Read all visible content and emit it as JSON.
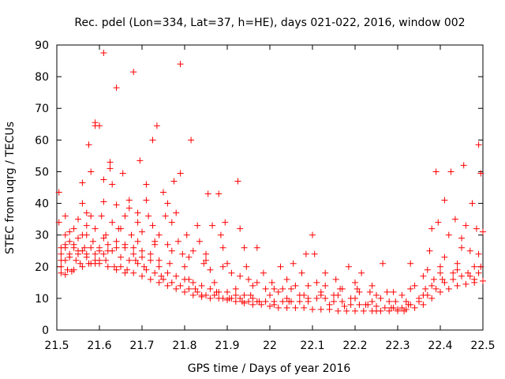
{
  "chart_data": {
    "type": "scatter",
    "title": "Rec. pdel (Lon=334, Lat=37, h=HE), days 021-022, 2016, window 002",
    "xlabel": "GPS time / Days of year 2016",
    "ylabel": "STEC from uqrg / TECUs",
    "xlim": [
      21.5,
      22.5
    ],
    "ylim": [
      0,
      90
    ],
    "xticks": [
      "21.5",
      "21.6",
      "21.7",
      "21.8",
      "21.9",
      "22",
      "22.1",
      "22.2",
      "22.3",
      "22.4",
      "22.5"
    ],
    "yticks": [
      "0",
      "10",
      "20",
      "30",
      "40",
      "50",
      "60",
      "70",
      "80",
      "90"
    ],
    "marker": "plus",
    "color": "#ff0000",
    "grid": false,
    "points": [
      [
        21.505,
        43.5
      ],
      [
        21.505,
        34
      ],
      [
        21.51,
        26
      ],
      [
        21.51,
        24
      ],
      [
        21.51,
        20
      ],
      [
        21.51,
        18
      ],
      [
        21.52,
        36
      ],
      [
        21.52,
        30
      ],
      [
        21.52,
        26
      ],
      [
        21.52,
        22
      ],
      [
        21.525,
        19
      ],
      [
        21.53,
        28
      ],
      [
        21.53,
        24
      ],
      [
        21.535,
        18.5
      ],
      [
        21.54,
        32
      ],
      [
        21.54,
        27
      ],
      [
        21.545,
        22
      ],
      [
        21.55,
        35
      ],
      [
        21.55,
        29
      ],
      [
        21.55,
        25
      ],
      [
        21.555,
        21
      ],
      [
        21.56,
        40
      ],
      [
        21.56,
        46.5
      ],
      [
        21.56,
        30
      ],
      [
        21.565,
        26
      ],
      [
        21.57,
        37
      ],
      [
        21.57,
        33
      ],
      [
        21.57,
        24
      ],
      [
        21.575,
        21
      ],
      [
        21.575,
        58.5
      ],
      [
        21.58,
        50
      ],
      [
        21.58,
        36
      ],
      [
        21.585,
        28
      ],
      [
        21.59,
        32
      ],
      [
        21.59,
        24
      ],
      [
        21.59,
        21
      ],
      [
        21.59,
        65.5
      ],
      [
        21.59,
        64.5
      ],
      [
        21.6,
        64.5
      ],
      [
        21.6,
        26
      ],
      [
        21.6,
        22
      ],
      [
        21.605,
        36
      ],
      [
        21.61,
        87.5
      ],
      [
        21.61,
        47.5
      ],
      [
        21.61,
        40.5
      ],
      [
        21.615,
        30
      ],
      [
        21.615,
        22
      ],
      [
        21.62,
        25
      ],
      [
        21.625,
        53
      ],
      [
        21.625,
        51
      ],
      [
        21.63,
        46
      ],
      [
        21.63,
        34
      ],
      [
        21.635,
        20
      ],
      [
        21.64,
        76.5
      ],
      [
        21.64,
        39.5
      ],
      [
        21.64,
        26
      ],
      [
        21.645,
        32
      ],
      [
        21.65,
        20
      ],
      [
        21.655,
        49.5
      ],
      [
        21.66,
        36
      ],
      [
        21.66,
        27
      ],
      [
        21.665,
        19
      ],
      [
        21.67,
        41
      ],
      [
        21.67,
        38.5
      ],
      [
        21.675,
        30
      ],
      [
        21.68,
        81.5
      ],
      [
        21.68,
        26
      ],
      [
        21.685,
        22
      ],
      [
        21.69,
        37
      ],
      [
        21.69,
        34
      ],
      [
        21.695,
        53.5
      ],
      [
        21.7,
        31
      ],
      [
        21.7,
        25
      ],
      [
        21.705,
        20
      ],
      [
        21.71,
        46
      ],
      [
        21.71,
        41
      ],
      [
        21.715,
        36
      ],
      [
        21.72,
        24
      ],
      [
        21.725,
        60
      ],
      [
        21.725,
        33
      ],
      [
        21.73,
        28
      ],
      [
        21.735,
        64.5
      ],
      [
        21.74,
        30
      ],
      [
        21.74,
        22
      ],
      [
        21.745,
        17
      ],
      [
        21.75,
        43.5
      ],
      [
        21.755,
        36
      ],
      [
        21.76,
        40
      ],
      [
        21.76,
        27
      ],
      [
        21.765,
        21
      ],
      [
        21.77,
        34
      ],
      [
        21.775,
        47
      ],
      [
        21.78,
        37
      ],
      [
        21.785,
        28
      ],
      [
        21.79,
        84
      ],
      [
        21.79,
        49.5
      ],
      [
        21.795,
        24
      ],
      [
        21.8,
        20
      ],
      [
        21.805,
        30
      ],
      [
        21.81,
        16
      ],
      [
        21.815,
        60
      ],
      [
        21.82,
        25
      ],
      [
        21.825,
        13
      ],
      [
        21.83,
        33
      ],
      [
        21.835,
        28
      ],
      [
        21.84,
        11
      ],
      [
        21.845,
        21
      ],
      [
        21.85,
        24
      ],
      [
        21.855,
        43
      ],
      [
        21.86,
        19
      ],
      [
        21.865,
        33
      ],
      [
        21.87,
        15
      ],
      [
        21.875,
        12
      ],
      [
        21.88,
        43
      ],
      [
        21.885,
        30
      ],
      [
        21.89,
        26
      ],
      [
        21.895,
        34
      ],
      [
        21.9,
        21
      ],
      [
        21.905,
        10
      ],
      [
        21.91,
        18
      ],
      [
        21.92,
        13
      ],
      [
        21.925,
        47
      ],
      [
        21.93,
        32
      ],
      [
        21.935,
        9
      ],
      [
        21.94,
        26
      ],
      [
        21.945,
        20
      ],
      [
        21.95,
        16
      ],
      [
        21.955,
        11
      ],
      [
        21.96,
        14
      ],
      [
        21.97,
        26
      ],
      [
        21.975,
        9
      ],
      [
        21.985,
        18
      ],
      [
        21.99,
        13
      ],
      [
        22.0,
        11
      ],
      [
        22.005,
        15
      ],
      [
        22.01,
        8
      ],
      [
        22.02,
        12
      ],
      [
        22.025,
        20
      ],
      [
        22.03,
        13
      ],
      [
        22.04,
        16
      ],
      [
        22.045,
        9
      ],
      [
        22.055,
        21
      ],
      [
        22.06,
        14
      ],
      [
        22.07,
        11
      ],
      [
        22.075,
        18
      ],
      [
        22.085,
        24
      ],
      [
        22.09,
        9
      ],
      [
        22.1,
        30
      ],
      [
        22.105,
        24
      ],
      [
        22.11,
        15
      ],
      [
        22.12,
        12
      ],
      [
        22.13,
        18
      ],
      [
        22.14,
        8
      ],
      [
        22.15,
        11
      ],
      [
        22.155,
        16
      ],
      [
        22.165,
        13
      ],
      [
        22.175,
        7.5
      ],
      [
        22.185,
        20
      ],
      [
        22.19,
        10
      ],
      [
        22.2,
        15
      ],
      [
        22.205,
        13
      ],
      [
        22.215,
        18
      ],
      [
        22.225,
        8
      ],
      [
        22.235,
        12
      ],
      [
        22.24,
        14
      ],
      [
        22.25,
        6
      ],
      [
        22.26,
        10
      ],
      [
        22.265,
        21
      ],
      [
        22.275,
        12
      ],
      [
        22.285,
        7
      ],
      [
        22.295,
        9
      ],
      [
        22.3,
        6.5
      ],
      [
        22.31,
        11
      ],
      [
        22.315,
        6
      ],
      [
        22.325,
        8
      ],
      [
        22.33,
        21
      ],
      [
        22.34,
        14
      ],
      [
        22.35,
        10
      ],
      [
        22.36,
        17
      ],
      [
        22.365,
        13
      ],
      [
        22.375,
        25
      ],
      [
        22.38,
        32
      ],
      [
        22.385,
        16
      ],
      [
        22.39,
        50
      ],
      [
        22.395,
        34
      ],
      [
        22.4,
        20
      ],
      [
        22.405,
        16
      ],
      [
        22.41,
        41
      ],
      [
        22.42,
        30
      ],
      [
        22.425,
        50
      ],
      [
        22.43,
        18
      ],
      [
        22.435,
        35
      ],
      [
        22.44,
        21
      ],
      [
        22.45,
        29
      ],
      [
        22.455,
        52
      ],
      [
        22.46,
        33
      ],
      [
        22.465,
        18
      ],
      [
        22.47,
        25
      ],
      [
        22.475,
        40
      ],
      [
        22.48,
        16
      ],
      [
        22.485,
        32
      ],
      [
        22.49,
        58.5
      ],
      [
        22.495,
        49.5
      ],
      [
        22.495,
        20
      ],
      [
        22.5,
        31
      ],
      [
        21.52,
        17.5
      ],
      [
        21.54,
        19
      ],
      [
        21.56,
        20
      ],
      [
        21.58,
        21
      ],
      [
        21.6,
        21
      ],
      [
        21.62,
        20
      ],
      [
        21.64,
        19
      ],
      [
        21.66,
        18
      ],
      [
        21.68,
        18
      ],
      [
        21.7,
        17
      ],
      [
        21.72,
        16
      ],
      [
        21.74,
        15
      ],
      [
        21.76,
        14
      ],
      [
        21.78,
        13
      ],
      [
        21.8,
        12
      ],
      [
        21.82,
        11
      ],
      [
        21.84,
        10.5
      ],
      [
        21.86,
        10
      ],
      [
        21.88,
        10
      ],
      [
        21.9,
        9.5
      ],
      [
        21.92,
        9
      ],
      [
        21.94,
        8.5
      ],
      [
        21.96,
        8
      ],
      [
        21.98,
        8
      ],
      [
        22.0,
        7.5
      ],
      [
        22.02,
        7
      ],
      [
        22.04,
        7
      ],
      [
        22.06,
        7
      ],
      [
        22.08,
        7
      ],
      [
        22.1,
        6.5
      ],
      [
        22.12,
        6.5
      ],
      [
        22.14,
        6.5
      ],
      [
        22.16,
        6
      ],
      [
        22.18,
        6
      ],
      [
        22.2,
        6
      ],
      [
        22.22,
        6
      ],
      [
        22.24,
        6
      ],
      [
        22.26,
        6
      ],
      [
        22.28,
        6
      ],
      [
        22.3,
        6
      ],
      [
        22.32,
        6.5
      ],
      [
        22.34,
        7
      ],
      [
        22.36,
        8
      ],
      [
        22.38,
        10
      ],
      [
        22.4,
        12
      ],
      [
        22.42,
        13
      ],
      [
        22.44,
        14
      ],
      [
        22.46,
        14.5
      ],
      [
        22.48,
        15
      ],
      [
        22.5,
        15.5
      ],
      [
        21.51,
        22
      ],
      [
        21.53,
        23
      ],
      [
        21.55,
        24
      ],
      [
        21.57,
        23
      ],
      [
        21.59,
        22
      ],
      [
        21.61,
        24
      ],
      [
        21.63,
        25
      ],
      [
        21.65,
        23
      ],
      [
        21.67,
        22
      ],
      [
        21.69,
        21
      ],
      [
        21.71,
        19
      ],
      [
        21.73,
        18
      ],
      [
        21.75,
        16
      ],
      [
        21.77,
        15
      ],
      [
        21.79,
        14
      ],
      [
        21.81,
        13
      ],
      [
        21.83,
        12
      ],
      [
        21.85,
        11
      ],
      [
        21.87,
        11
      ],
      [
        21.89,
        10
      ],
      [
        21.91,
        10
      ],
      [
        21.93,
        10
      ],
      [
        21.95,
        9
      ],
      [
        21.97,
        9
      ],
      [
        21.99,
        9
      ],
      [
        22.01,
        9
      ],
      [
        22.03,
        9
      ],
      [
        22.05,
        9
      ],
      [
        22.07,
        9
      ],
      [
        22.09,
        10
      ],
      [
        22.11,
        10
      ],
      [
        22.13,
        10
      ],
      [
        22.15,
        9
      ],
      [
        22.17,
        9
      ],
      [
        22.19,
        8
      ],
      [
        22.21,
        8
      ],
      [
        22.23,
        8
      ],
      [
        22.25,
        7.5
      ],
      [
        22.27,
        7
      ],
      [
        22.29,
        7
      ],
      [
        22.31,
        7
      ],
      [
        22.33,
        8
      ],
      [
        22.35,
        9
      ],
      [
        22.37,
        11
      ],
      [
        22.39,
        13
      ],
      [
        22.41,
        15
      ],
      [
        22.43,
        16
      ],
      [
        22.45,
        17
      ],
      [
        22.47,
        17
      ],
      [
        22.49,
        18
      ],
      [
        21.52,
        27
      ],
      [
        21.54,
        26
      ],
      [
        21.56,
        25
      ],
      [
        21.58,
        26
      ],
      [
        21.6,
        25
      ],
      [
        21.62,
        27
      ],
      [
        21.64,
        28
      ],
      [
        21.66,
        26
      ],
      [
        21.68,
        24
      ],
      [
        21.7,
        23
      ],
      [
        21.72,
        22
      ],
      [
        21.74,
        20
      ],
      [
        21.76,
        18
      ],
      [
        21.78,
        17
      ],
      [
        21.8,
        16
      ],
      [
        21.82,
        15
      ],
      [
        21.84,
        14
      ],
      [
        21.86,
        13
      ],
      [
        21.88,
        12
      ],
      [
        21.9,
        12
      ],
      [
        21.92,
        11
      ],
      [
        21.94,
        11
      ],
      [
        21.96,
        10
      ],
      [
        22.04,
        10
      ],
      [
        22.08,
        11
      ],
      [
        22.12,
        11
      ],
      [
        22.16,
        11
      ],
      [
        22.2,
        10
      ],
      [
        22.24,
        9
      ],
      [
        22.28,
        9
      ],
      [
        22.32,
        9
      ],
      [
        22.36,
        11
      ],
      [
        22.38,
        14
      ],
      [
        22.4,
        18
      ],
      [
        22.44,
        19
      ],
      [
        22.48,
        20
      ],
      [
        21.53,
        31
      ],
      [
        21.57,
        30
      ],
      [
        21.61,
        29
      ],
      [
        21.65,
        32
      ],
      [
        21.69,
        28
      ],
      [
        21.73,
        27
      ],
      [
        21.77,
        25
      ],
      [
        21.81,
        23
      ],
      [
        21.85,
        22
      ],
      [
        21.89,
        20
      ],
      [
        21.93,
        17
      ],
      [
        21.97,
        15
      ],
      [
        22.01,
        13
      ],
      [
        22.05,
        13
      ],
      [
        22.09,
        14
      ],
      [
        22.13,
        14
      ],
      [
        22.17,
        13
      ],
      [
        22.21,
        12
      ],
      [
        22.25,
        11
      ],
      [
        22.29,
        12
      ],
      [
        22.33,
        13
      ],
      [
        22.37,
        19
      ],
      [
        22.41,
        23
      ],
      [
        22.45,
        26
      ],
      [
        22.49,
        24
      ]
    ]
  }
}
